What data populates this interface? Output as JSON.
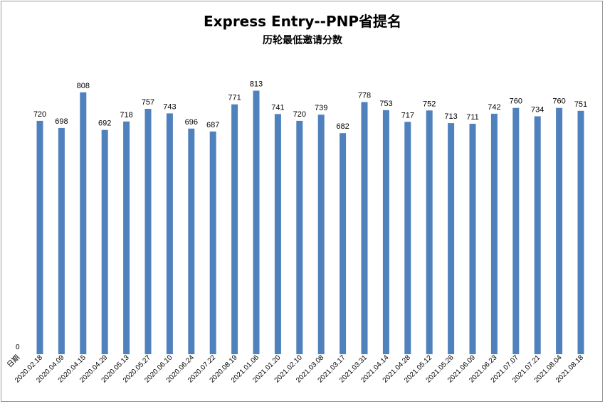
{
  "chart_data": {
    "type": "bar",
    "title": "Express Entry--PNP省提名",
    "subtitle": "历轮最低邀请分数",
    "x_axis_first_label": "日期",
    "y_axis_zero_label": "0",
    "bar_color": "#4f81bd",
    "categories": [
      "2020.02.18",
      "2020.04.09",
      "2020.04.15",
      "2020.04.29",
      "2020.05.13",
      "2020.05.27",
      "2020.06.10",
      "2020.06.24",
      "2020.07.22",
      "2020.08.19",
      "2021.01.06",
      "2021.01.20",
      "2021.02.10",
      "2021.03.08",
      "2021.03.17",
      "2021.03.31",
      "2021.04.14",
      "2021.04.28",
      "2021.05.12",
      "2021.05.26",
      "2021.06.09",
      "2021.06.23",
      "2021.07.07",
      "2021.07.21",
      "2021.08.04",
      "2021.08.18"
    ],
    "values": [
      720,
      698,
      808,
      692,
      718,
      757,
      743,
      696,
      687,
      771,
      813,
      741,
      720,
      739,
      682,
      778,
      753,
      717,
      752,
      713,
      711,
      742,
      760,
      734,
      760,
      751
    ],
    "ylim": [
      0,
      950
    ],
    "grid": false,
    "legend": "none"
  }
}
